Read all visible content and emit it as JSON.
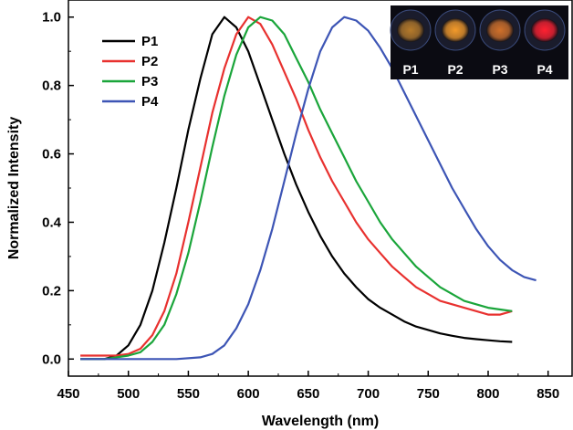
{
  "chart_data": {
    "type": "line",
    "title": "",
    "xlabel": "Wavelength (nm)",
    "ylabel": "Normalized Intensity",
    "xlim": [
      450,
      870
    ],
    "ylim": [
      -0.05,
      1.05
    ],
    "x_ticks": [
      450,
      500,
      550,
      600,
      650,
      700,
      750,
      800,
      850
    ],
    "y_ticks": [
      0.0,
      0.2,
      0.4,
      0.6,
      0.8,
      1.0
    ],
    "x_tick_labels": [
      "450",
      "500",
      "550",
      "600",
      "650",
      "700",
      "750",
      "800",
      "850"
    ],
    "y_tick_labels": [
      "0.0",
      "0.2",
      "0.4",
      "0.6",
      "0.8",
      "1.0"
    ],
    "grid": false,
    "legend_position": "top-left",
    "series": [
      {
        "name": "P1",
        "color": "#000000",
        "points": [
          [
            460,
            0.0
          ],
          [
            480,
            0.0
          ],
          [
            490,
            0.01
          ],
          [
            500,
            0.04
          ],
          [
            510,
            0.1
          ],
          [
            520,
            0.2
          ],
          [
            530,
            0.34
          ],
          [
            540,
            0.5
          ],
          [
            550,
            0.67
          ],
          [
            560,
            0.82
          ],
          [
            570,
            0.95
          ],
          [
            580,
            1.0
          ],
          [
            590,
            0.97
          ],
          [
            600,
            0.9
          ],
          [
            610,
            0.8
          ],
          [
            620,
            0.7
          ],
          [
            630,
            0.6
          ],
          [
            640,
            0.51
          ],
          [
            650,
            0.43
          ],
          [
            660,
            0.36
          ],
          [
            670,
            0.3
          ],
          [
            680,
            0.25
          ],
          [
            690,
            0.21
          ],
          [
            700,
            0.175
          ],
          [
            710,
            0.15
          ],
          [
            720,
            0.13
          ],
          [
            730,
            0.11
          ],
          [
            740,
            0.095
          ],
          [
            750,
            0.085
          ],
          [
            760,
            0.075
          ],
          [
            770,
            0.068
          ],
          [
            780,
            0.062
          ],
          [
            790,
            0.058
          ],
          [
            800,
            0.055
          ],
          [
            810,
            0.052
          ],
          [
            820,
            0.05
          ]
        ]
      },
      {
        "name": "P2",
        "color": "#e8312f",
        "points": [
          [
            460,
            0.01
          ],
          [
            470,
            0.01
          ],
          [
            480,
            0.01
          ],
          [
            490,
            0.01
          ],
          [
            500,
            0.015
          ],
          [
            510,
            0.03
          ],
          [
            520,
            0.07
          ],
          [
            530,
            0.14
          ],
          [
            540,
            0.25
          ],
          [
            550,
            0.4
          ],
          [
            560,
            0.56
          ],
          [
            570,
            0.72
          ],
          [
            580,
            0.85
          ],
          [
            590,
            0.95
          ],
          [
            600,
            1.0
          ],
          [
            610,
            0.98
          ],
          [
            620,
            0.92
          ],
          [
            630,
            0.84
          ],
          [
            640,
            0.76
          ],
          [
            650,
            0.67
          ],
          [
            660,
            0.59
          ],
          [
            670,
            0.52
          ],
          [
            680,
            0.46
          ],
          [
            690,
            0.4
          ],
          [
            700,
            0.35
          ],
          [
            710,
            0.31
          ],
          [
            720,
            0.27
          ],
          [
            730,
            0.24
          ],
          [
            740,
            0.21
          ],
          [
            750,
            0.19
          ],
          [
            760,
            0.17
          ],
          [
            770,
            0.16
          ],
          [
            780,
            0.15
          ],
          [
            790,
            0.14
          ],
          [
            800,
            0.13
          ],
          [
            810,
            0.13
          ],
          [
            820,
            0.14
          ]
        ]
      },
      {
        "name": "P3",
        "color": "#1aa53a",
        "points": [
          [
            460,
            0.0
          ],
          [
            480,
            0.0
          ],
          [
            500,
            0.01
          ],
          [
            510,
            0.02
          ],
          [
            520,
            0.05
          ],
          [
            530,
            0.1
          ],
          [
            540,
            0.19
          ],
          [
            550,
            0.31
          ],
          [
            560,
            0.46
          ],
          [
            570,
            0.62
          ],
          [
            580,
            0.77
          ],
          [
            590,
            0.89
          ],
          [
            600,
            0.97
          ],
          [
            610,
            1.0
          ],
          [
            620,
            0.99
          ],
          [
            630,
            0.95
          ],
          [
            640,
            0.88
          ],
          [
            650,
            0.81
          ],
          [
            660,
            0.73
          ],
          [
            670,
            0.66
          ],
          [
            680,
            0.59
          ],
          [
            690,
            0.52
          ],
          [
            700,
            0.46
          ],
          [
            710,
            0.4
          ],
          [
            720,
            0.35
          ],
          [
            730,
            0.31
          ],
          [
            740,
            0.27
          ],
          [
            750,
            0.24
          ],
          [
            760,
            0.21
          ],
          [
            770,
            0.19
          ],
          [
            780,
            0.17
          ],
          [
            790,
            0.16
          ],
          [
            800,
            0.15
          ],
          [
            810,
            0.145
          ],
          [
            820,
            0.14
          ]
        ]
      },
      {
        "name": "P4",
        "color": "#3d55b5",
        "points": [
          [
            460,
            0.0
          ],
          [
            540,
            0.0
          ],
          [
            560,
            0.005
          ],
          [
            570,
            0.015
          ],
          [
            580,
            0.04
          ],
          [
            590,
            0.09
          ],
          [
            600,
            0.16
          ],
          [
            610,
            0.26
          ],
          [
            620,
            0.38
          ],
          [
            630,
            0.52
          ],
          [
            640,
            0.66
          ],
          [
            650,
            0.79
          ],
          [
            660,
            0.9
          ],
          [
            670,
            0.97
          ],
          [
            680,
            1.0
          ],
          [
            690,
            0.99
          ],
          [
            700,
            0.96
          ],
          [
            710,
            0.91
          ],
          [
            720,
            0.85
          ],
          [
            730,
            0.78
          ],
          [
            740,
            0.71
          ],
          [
            750,
            0.64
          ],
          [
            760,
            0.57
          ],
          [
            770,
            0.5
          ],
          [
            780,
            0.44
          ],
          [
            790,
            0.38
          ],
          [
            800,
            0.33
          ],
          [
            810,
            0.29
          ],
          [
            820,
            0.26
          ],
          [
            830,
            0.24
          ],
          [
            840,
            0.23
          ]
        ]
      }
    ]
  },
  "inset": {
    "labels": [
      "P1",
      "P2",
      "P3",
      "P4"
    ],
    "glow_colors": [
      "#b57a2a",
      "#f39a2a",
      "#d0702a",
      "#ff2030"
    ]
  }
}
